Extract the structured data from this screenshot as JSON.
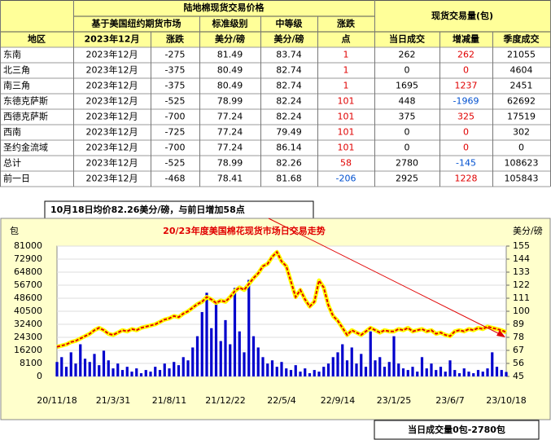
{
  "table": {
    "title": "陆地棉现货交易价格",
    "volume_title": "现货交易量(包)",
    "subheaders": [
      "基于美国纽约期货市场",
      "标准级别",
      "中等级",
      "涨跌"
    ],
    "columns": [
      "地区",
      "2023年12月",
      "涨跌",
      "美分/磅",
      "美分/磅",
      "点",
      "当日成交",
      "增减量",
      "季度成交"
    ],
    "rows": [
      [
        "东南",
        "2023年12月",
        -275,
        81.49,
        83.74,
        1,
        262,
        262,
        21055
      ],
      [
        "北三角",
        "2023年12月",
        -375,
        80.49,
        82.74,
        1,
        0,
        0,
        4604
      ],
      [
        "南三角",
        "2023年12月",
        -375,
        80.49,
        82.74,
        1,
        1695,
        1237,
        2451
      ],
      [
        "东德克萨斯",
        "2023年12月",
        -525,
        78.99,
        82.24,
        101,
        448,
        -1969,
        62692
      ],
      [
        "西德克萨斯",
        "2023年12月",
        -700,
        77.24,
        82.24,
        101,
        375,
        325,
        17519
      ],
      [
        "西南",
        "2023年12月",
        -725,
        77.24,
        79.49,
        101,
        0,
        0,
        302
      ],
      [
        "圣约金流域",
        "2023年12月",
        -700,
        77.24,
        86.14,
        101,
        0,
        0,
        0
      ],
      [
        "总计",
        "2023年12月",
        -525,
        78.99,
        82.26,
        58,
        2780,
        -145,
        108623
      ],
      [
        "前一日",
        "2023年12月",
        -468,
        78.41,
        81.68,
        -206,
        2925,
        1228,
        105843
      ]
    ]
  },
  "annotations": [
    "10月18日均价82.26美分/磅，与前日增加58点",
    "当日成交量0包-2780包"
  ],
  "chart_data": {
    "type": "combo",
    "title": "20/23年度美国棉花现货市场日交易走势",
    "ylabel": "包",
    "y2label": "美分/磅",
    "grid": true,
    "categories": [
      "20/11/18",
      null,
      null,
      null,
      null,
      null,
      null,
      null,
      null,
      null,
      null,
      null,
      "21/3/31",
      null,
      null,
      null,
      null,
      null,
      null,
      null,
      null,
      null,
      null,
      null,
      "21/8/11",
      null,
      null,
      null,
      null,
      null,
      null,
      null,
      null,
      null,
      null,
      null,
      "21/12/22",
      null,
      null,
      null,
      null,
      null,
      null,
      null,
      null,
      null,
      null,
      null,
      "22/5/4",
      null,
      null,
      null,
      null,
      null,
      null,
      null,
      null,
      null,
      null,
      null,
      "22/9/14",
      null,
      null,
      null,
      null,
      null,
      null,
      null,
      null,
      null,
      null,
      null,
      "23/1/25",
      null,
      null,
      null,
      null,
      null,
      null,
      null,
      null,
      null,
      null,
      null,
      "23/6/7",
      null,
      null,
      null,
      null,
      null,
      null,
      null,
      null,
      null,
      null,
      null,
      "23/10/18"
    ],
    "ylim": [
      0,
      81000
    ],
    "yticks": [
      0,
      8100,
      16200,
      24300,
      32400,
      40500,
      48600,
      56700,
      64800,
      72900,
      81000
    ],
    "y2lim": [
      45,
      155
    ],
    "y2ticks": [
      45,
      56,
      67,
      78,
      89,
      100,
      111,
      122,
      133,
      144,
      155
    ],
    "series": [
      {
        "type": "bar",
        "color": "#0000cc",
        "values": [
          9000,
          12000,
          6000,
          15000,
          8000,
          20000,
          11000,
          9000,
          14000,
          7000,
          16000,
          10000,
          5000,
          8000,
          4000,
          6000,
          3000,
          5000,
          2000,
          4000,
          3000,
          6000,
          4000,
          8000,
          5000,
          9000,
          7000,
          12000,
          10000,
          18000,
          25000,
          40000,
          52000,
          30000,
          45000,
          22000,
          35000,
          20000,
          55000,
          28000,
          15000,
          60000,
          25000,
          18000,
          12000,
          8000,
          10000,
          6000,
          9000,
          5000,
          4000,
          7000,
          3000,
          5000,
          2000,
          4000,
          3000,
          6000,
          8000,
          12000,
          15000,
          20000,
          10000,
          18000,
          8000,
          14000,
          6000,
          28000,
          10000,
          12000,
          6000,
          9000,
          25000,
          8000,
          5000,
          4000,
          6000,
          3000,
          12000,
          5000,
          8000,
          4000,
          6000,
          3000,
          10000,
          4000,
          2000,
          5000,
          3000,
          2000,
          4000,
          3000,
          5000,
          15000,
          6000,
          4000,
          2780
        ]
      },
      {
        "type": "line",
        "axis": "y2",
        "color": "#e00000",
        "halo": "#ffff00",
        "values": [
          70,
          71,
          72,
          74,
          75,
          77,
          79,
          81,
          84,
          86,
          84,
          81,
          80,
          82,
          84,
          83,
          85,
          84,
          86,
          87,
          88,
          89,
          91,
          93,
          94,
          96,
          95,
          98,
          100,
          103,
          106,
          108,
          112,
          110,
          107,
          109,
          108,
          112,
          117,
          120,
          118,
          123,
          128,
          132,
          138,
          140,
          146,
          150,
          142,
          138,
          125,
          112,
          118,
          110,
          104,
          108,
          126,
          120,
          105,
          96,
          92,
          86,
          80,
          84,
          82,
          80,
          83,
          86,
          84,
          82,
          84,
          83,
          83,
          85,
          84,
          86,
          83,
          84,
          85,
          83,
          84,
          81,
          82,
          80,
          79,
          83,
          84,
          83,
          85,
          84,
          86,
          85,
          87,
          86,
          85,
          84,
          82.26
        ]
      }
    ]
  }
}
